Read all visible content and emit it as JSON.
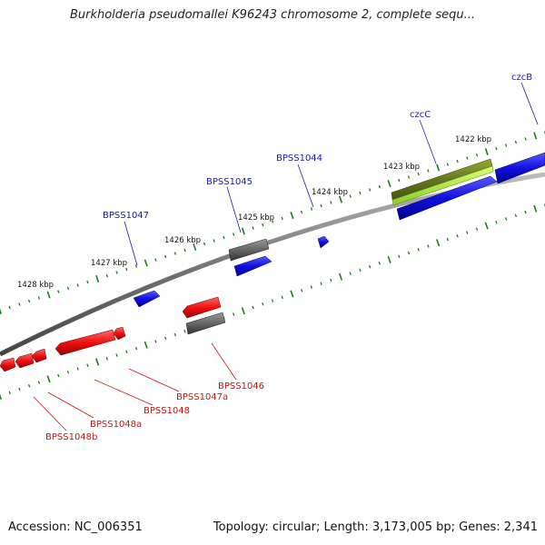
{
  "title": "Burkholderia pseudomallei K96243 chromosome 2, complete sequ...",
  "footer": {
    "accession": "Accession: NC_006351",
    "stats": "Topology: circular; Length: 3,173,005 bp; Genes: 2,341"
  },
  "colors": {
    "backbone": "#888888",
    "tick": "#1f7a1f",
    "forward_gene": "#1010e0",
    "reverse_gene": "#ee1111",
    "other_feature": "#666666",
    "highlight": "#99cc33",
    "label_forward": "#1a1aa6",
    "label_reverse": "#cc1111"
  },
  "scale_labels": [
    "1428 kbp",
    "1427 kbp",
    "1426 kbp",
    "1425 kbp",
    "1424 kbp",
    "1423 kbp",
    "1422 kbp"
  ],
  "forward_genes": [
    "BPSS1047",
    "BPSS1045",
    "BPSS1044",
    "czcC",
    "czcB"
  ],
  "reverse_genes": [
    "BPSS1046",
    "BPSS1047a",
    "BPSS1048",
    "BPSS1048a",
    "BPSS1048b"
  ]
}
